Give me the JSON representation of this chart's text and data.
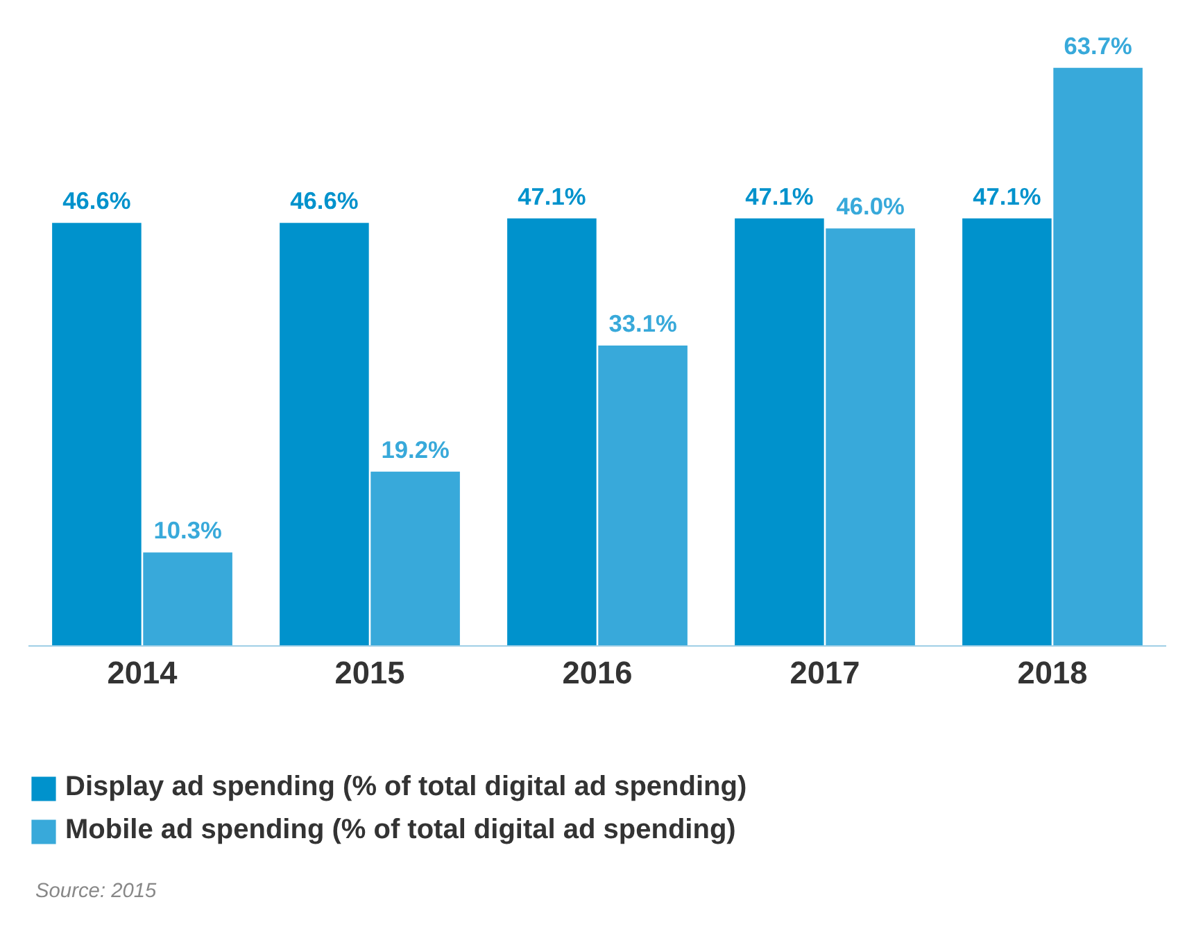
{
  "chart_data": {
    "type": "bar",
    "categories": [
      "2014",
      "2015",
      "2016",
      "2017",
      "2018"
    ],
    "series": [
      {
        "name": "Display ad spending (% of total digital ad spending)",
        "color": "#0092cc",
        "values": [
          46.6,
          46.6,
          47.1,
          47.1,
          47.1
        ],
        "value_labels": [
          "46.6%",
          "46.6%",
          "47.1%",
          "47.1%",
          "47.1%"
        ]
      },
      {
        "name": "Mobile ad spending (% of total digital ad spending)",
        "color": "#38a9da",
        "values": [
          10.3,
          19.2,
          33.1,
          46.0,
          63.7
        ],
        "value_labels": [
          "10.3%",
          "19.2%",
          "33.1%",
          "46.0%",
          "63.7%"
        ]
      }
    ],
    "legend": "bottom",
    "annotations": [
      "Source: 2015"
    ]
  }
}
